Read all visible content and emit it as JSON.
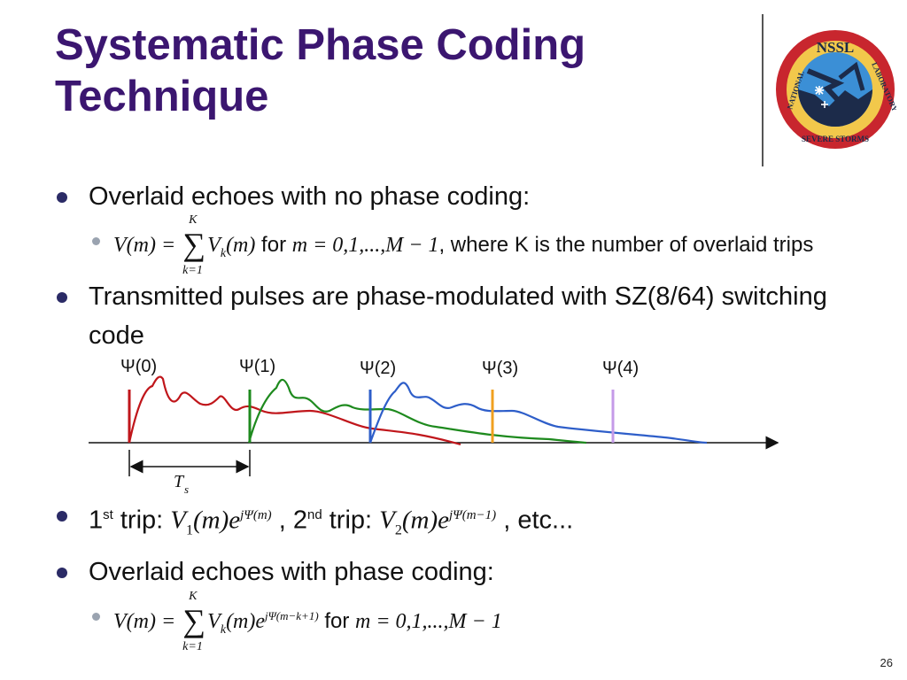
{
  "slide": {
    "title": "Systematic Phase Coding Technique",
    "page_number": "26",
    "logo": {
      "top_text": "NSSL",
      "left_text": "NATIONAL",
      "right_text": "LABORATORY",
      "bottom_text": "SEVERE STORMS",
      "colors": {
        "ring_outer": "#c8262e",
        "ring_inner": "#f2c84b",
        "sky": "#3b8fd6",
        "ground": "#1c2b4a"
      }
    },
    "bullets": [
      {
        "text": "Overlaid echoes with no phase coding:"
      },
      {
        "text": "Transmitted pulses are phase-modulated with SZ(8/64) switching code"
      },
      {
        "prefix": "1",
        "sup1": "st",
        "mid": " trip: ",
        "sep": " , 2",
        "sup2": "nd",
        "mid2": " trip: ",
        "suffix": " , etc..."
      },
      {
        "text": "Overlaid echoes with phase coding:"
      }
    ],
    "equation1": {
      "lhs": "V(m) = ",
      "sum_upper": "K",
      "sum_lower": "k=1",
      "term": "V",
      "term_sub": "k",
      "term_arg": "(m)",
      "for_word": " for ",
      "range": "m = 0,1,...,M − 1",
      "tail": ", where K is the number of overlaid trips"
    },
    "trip_expr1": {
      "V": "V",
      "sub": "1",
      "arg": "(m)e",
      "exp": "jΨ(m)"
    },
    "trip_expr2": {
      "V": "V",
      "sub": "2",
      "arg": "(m)e",
      "exp": "jΨ(m−1)"
    },
    "equation2": {
      "lhs": "V(m) = ",
      "sum_upper": "K",
      "sum_lower": "k=1",
      "term": "V",
      "term_sub": "k",
      "term_arg": "(m)e",
      "exp": "jΨ(m−k+1)",
      "for_word": " for ",
      "range": "m = 0,1,...,M − 1"
    },
    "diagram": {
      "pulse_labels": [
        "Ψ(0)",
        "Ψ(1)",
        "Ψ(2)",
        "Ψ(3)",
        "Ψ(4)"
      ],
      "pulse_colors": [
        "#c0161b",
        "#1e8a1e",
        "#2e5ec9",
        "#f0a020",
        "#c59ae8"
      ],
      "ts_label": "T",
      "ts_sub": "s"
    }
  }
}
